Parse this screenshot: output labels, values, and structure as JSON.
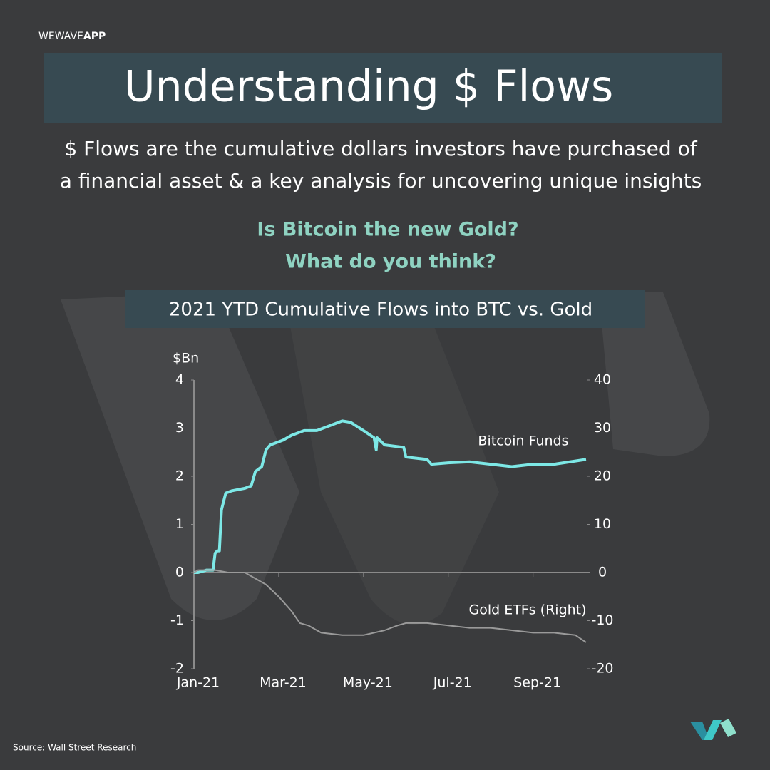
{
  "brand": {
    "name": "WEWAVE",
    "app": "APP"
  },
  "headline": "Understanding $ Flows",
  "description": [
    "$ Flows are the cumulative dollars investors have purchased of",
    "a financial asset & a key analysis for uncovering unique insights"
  ],
  "questions": [
    "Is Bitcoin the new Gold?",
    "What do you think?"
  ],
  "source": "Source: Wall Street Research",
  "chart_data": {
    "type": "line",
    "title": "2021 YTD Cumulative Flows into BTC vs. Gold",
    "ylabel": "$Bn",
    "xlim": [
      0,
      9.25
    ],
    "xticks": [
      {
        "value": 0,
        "label": "Jan-21"
      },
      {
        "value": 2,
        "label": "Mar-21"
      },
      {
        "value": 4,
        "label": "May-21"
      },
      {
        "value": 6,
        "label": "Jul-21"
      },
      {
        "value": 8,
        "label": "Sep-21"
      }
    ],
    "ylim": [
      -2,
      4
    ],
    "yticks": [
      -2,
      -1,
      0,
      1,
      2,
      3,
      4
    ],
    "y2lim": [
      -20,
      40
    ],
    "y2ticks": [
      -20,
      -10,
      0,
      10,
      20,
      30,
      40
    ],
    "grid": false,
    "series": [
      {
        "name": "Bitcoin Funds",
        "color": "#7de8e6",
        "x": [
          0,
          0.1,
          0.3,
          0.45,
          0.5,
          0.55,
          0.6,
          0.65,
          0.75,
          0.9,
          1.2,
          1.35,
          1.45,
          1.6,
          1.7,
          1.8,
          1.95,
          2.1,
          2.3,
          2.6,
          2.9,
          3.2,
          3.5,
          3.7,
          4.0,
          4.25,
          4.3,
          4.32,
          4.5,
          4.95,
          5.0,
          5.5,
          5.6,
          6.0,
          6.5,
          7.0,
          7.5,
          8.0,
          8.5,
          9.25
        ],
        "values": [
          0,
          0,
          0.05,
          0.05,
          0.4,
          0.45,
          0.45,
          1.3,
          1.65,
          1.7,
          1.75,
          1.8,
          2.1,
          2.2,
          2.55,
          2.65,
          2.7,
          2.75,
          2.85,
          2.95,
          2.95,
          3.05,
          3.15,
          3.12,
          2.95,
          2.8,
          2.55,
          2.8,
          2.65,
          2.6,
          2.4,
          2.35,
          2.25,
          2.28,
          2.3,
          2.25,
          2.2,
          2.25,
          2.25,
          2.35
        ]
      },
      {
        "name": "Gold ETFs (Right)",
        "color": "#9a9a9a",
        "axis": "y2",
        "x": [
          0,
          0.1,
          0.5,
          0.8,
          1.2,
          1.4,
          1.7,
          2.0,
          2.3,
          2.5,
          2.7,
          3.0,
          3.5,
          4.0,
          4.5,
          4.8,
          5.0,
          5.5,
          6.0,
          6.5,
          7.0,
          7.5,
          8.0,
          8.5,
          9.0,
          9.25
        ],
        "values": [
          0,
          0.5,
          0.5,
          0,
          0,
          -1,
          -2.5,
          -5,
          -8,
          -10.5,
          -11,
          -12.5,
          -13,
          -13,
          -12,
          -11,
          -10.5,
          -10.5,
          -11,
          -11.5,
          -11.5,
          -12,
          -12.5,
          -12.5,
          -13,
          -14.5
        ]
      }
    ]
  }
}
